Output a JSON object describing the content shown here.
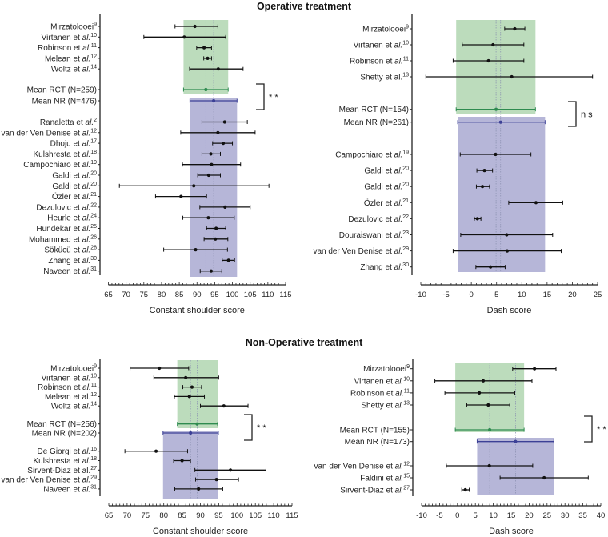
{
  "titles": {
    "operative": "Operative treatment",
    "non_operative": "Non-Operative treatment"
  },
  "colors": {
    "rct_band": "#bcdcbc",
    "nr_band": "#b6b6d8",
    "rct_line": "#2e8b4f",
    "nr_line": "#3c4096",
    "study": "#111111"
  },
  "chart_data": [
    {
      "type": "forest",
      "section": "Operative treatment",
      "xlabel": "Constant shoulder score",
      "xlim": [
        65,
        115
      ],
      "xticks": [
        65,
        70,
        75,
        80,
        85,
        90,
        95,
        100,
        105,
        110,
        115
      ],
      "significance": "* *",
      "rct_studies": [
        {
          "name": "Mirzatolooei",
          "ref": "9",
          "al": false,
          "mean": 89.4,
          "lo": 83.8,
          "hi": 95.9
        },
        {
          "name": "Virtanen et al.",
          "ref": "10",
          "al": true,
          "mean": 86.4,
          "lo": 75.0,
          "hi": 98.1
        },
        {
          "name": "Robinson et al.",
          "ref": "11",
          "al": true,
          "mean": 92.0,
          "lo": 89.9,
          "hi": 94.1
        },
        {
          "name": "Melean et al.",
          "ref": "12",
          "al": true,
          "mean": 93.0,
          "lo": 91.9,
          "hi": 94.1
        },
        {
          "name": "Woltz et al.",
          "ref": "14",
          "al": true,
          "mean": 96.0,
          "lo": 87.9,
          "hi": 103.0
        }
      ],
      "means": [
        {
          "name": "Mean RCT (N=259)",
          "group": "rct",
          "mean": 92.5,
          "lo": 86.2,
          "hi": 98.8
        },
        {
          "name": "Mean NR (N=476)",
          "group": "nr",
          "mean": 94.7,
          "lo": 88.0,
          "hi": 101.3
        }
      ],
      "nr_studies": [
        {
          "name": "Ranaletta et al.",
          "ref": "2",
          "al": true,
          "mean": 97.8,
          "lo": 91.4,
          "hi": 104.2
        },
        {
          "name": "van der Ven Denise et al.",
          "ref": "12",
          "al": true,
          "mean": 95.9,
          "lo": 85.4,
          "hi": 106.4
        },
        {
          "name": "Dhoju et al.",
          "ref": "17",
          "al": true,
          "mean": 97.4,
          "lo": 94.4,
          "hi": 100.0
        },
        {
          "name": "Kulshresta et al.",
          "ref": "18",
          "al": true,
          "mean": 93.9,
          "lo": 91.4,
          "hi": 96.6
        },
        {
          "name": "Campochiaro  et al.",
          "ref": "19",
          "al": true,
          "mean": 94.1,
          "lo": 85.9,
          "hi": 102.3
        },
        {
          "name": "Galdi et al.",
          "ref": "20",
          "al": true,
          "mean": 93.3,
          "lo": 90.2,
          "hi": 96.6
        },
        {
          "name": "Galdi et al.",
          "ref": "20",
          "al": true,
          "mean": 89.1,
          "lo": 68.1,
          "hi": 110.3
        },
        {
          "name": "Özler et al.",
          "ref": "21",
          "al": true,
          "mean": 85.5,
          "lo": 78.3,
          "hi": 92.7
        },
        {
          "name": "Dezulovic et al.",
          "ref": "22",
          "al": true,
          "mean": 97.9,
          "lo": 90.8,
          "hi": 105.0
        },
        {
          "name": "Heurle et al.",
          "ref": "24",
          "al": true,
          "mean": 93.2,
          "lo": 86.0,
          "hi": 100.5
        },
        {
          "name": "Hundekar et al.",
          "ref": "25",
          "al": true,
          "mean": 95.4,
          "lo": 92.7,
          "hi": 98.1
        },
        {
          "name": "Mohammed et al.",
          "ref": "26",
          "al": true,
          "mean": 95.2,
          "lo": 92.0,
          "hi": 98.7
        },
        {
          "name": "Sökücü et al.",
          "ref": "28",
          "al": true,
          "mean": 89.6,
          "lo": 80.6,
          "hi": 98.6
        },
        {
          "name": "Zhang et al.",
          "ref": "30",
          "al": true,
          "mean": 98.9,
          "lo": 97.1,
          "hi": 100.6
        },
        {
          "name": "Naveen et al.",
          "ref": "31",
          "al": true,
          "mean": 94.0,
          "lo": 90.9,
          "hi": 97.0
        }
      ]
    },
    {
      "type": "forest",
      "section": "Operative treatment",
      "xlabel": "Dash score",
      "xlim": [
        -10,
        25
      ],
      "xticks": [
        -10,
        -5,
        0,
        5,
        10,
        15,
        20,
        25
      ],
      "significance": "n s",
      "rct_studies": [
        {
          "name": "Mirzatolooei",
          "ref": "9",
          "al": false,
          "mean": 8.6,
          "lo": 6.6,
          "hi": 10.6
        },
        {
          "name": "Virtanen et al.",
          "ref": "10",
          "al": true,
          "mean": 4.3,
          "lo": -1.8,
          "hi": 10.4
        },
        {
          "name": "Robinson et al.",
          "ref": "11",
          "al": true,
          "mean": 3.4,
          "lo": -3.6,
          "hi": 10.4
        },
        {
          "name": "Shetty et al.",
          "ref": "13",
          "al": false,
          "mean": 8.0,
          "lo": -9.0,
          "hi": 24.0
        }
      ],
      "means": [
        {
          "name": "Mean RCT (N=154)",
          "group": "rct",
          "mean": 4.9,
          "lo": -3.0,
          "hi": 12.7
        },
        {
          "name": "Mean NR (N=261)",
          "group": "nr",
          "mean": 5.8,
          "lo": -2.7,
          "hi": 14.6
        }
      ],
      "nr_studies": [
        {
          "name": "Campochiaro et al.",
          "ref": "19",
          "al": true,
          "mean": 4.8,
          "lo": -2.2,
          "hi": 11.8
        },
        {
          "name": "Galdi et al.",
          "ref": "20",
          "al": true,
          "mean": 2.6,
          "lo": 1.1,
          "hi": 4.2
        },
        {
          "name": "Galdi et al.",
          "ref": "20",
          "al": true,
          "mean": 2.2,
          "lo": 1.0,
          "hi": 3.6
        },
        {
          "name": "Özler et al.",
          "ref": "21",
          "al": true,
          "mean": 12.8,
          "lo": 7.4,
          "hi": 18.1
        },
        {
          "name": "Dezulovic et al.",
          "ref": "22",
          "al": true,
          "mean": 1.2,
          "lo": 0.6,
          "hi": 1.9
        },
        {
          "name": "Douraiswani et al.",
          "ref": "23",
          "al": true,
          "mean": 7.0,
          "lo": -2.1,
          "hi": 16.1
        },
        {
          "name": "van der Ven Denise et al.",
          "ref": "29",
          "al": true,
          "mean": 7.1,
          "lo": -3.6,
          "hi": 17.8
        },
        {
          "name": "Zhang et al.",
          "ref": "30",
          "al": true,
          "mean": 3.8,
          "lo": 0.9,
          "hi": 6.7
        }
      ]
    },
    {
      "type": "forest",
      "section": "Non-Operative treatment",
      "xlabel": "Constant shoulder score",
      "xlim": [
        65,
        115
      ],
      "xticks": [
        65,
        70,
        75,
        80,
        85,
        90,
        95,
        100,
        105,
        110,
        115
      ],
      "significance": "* *",
      "rct_studies": [
        {
          "name": "Mirzatolooei",
          "ref": "9",
          "al": false,
          "mean": 78.8,
          "lo": 70.8,
          "hi": 86.8
        },
        {
          "name": "Virtanen et al.",
          "ref": "10",
          "al": true,
          "mean": 86.0,
          "lo": 77.3,
          "hi": 95.0
        },
        {
          "name": "Robinson et al.",
          "ref": "11",
          "al": true,
          "mean": 87.7,
          "lo": 85.2,
          "hi": 90.3
        },
        {
          "name": "Melean et al.",
          "ref": "12",
          "al": false,
          "mean": 87.0,
          "lo": 82.9,
          "hi": 91.1
        },
        {
          "name": "Woltz et al.",
          "ref": "14",
          "al": true,
          "mean": 96.4,
          "lo": 90.0,
          "hi": 103.0
        }
      ],
      "means": [
        {
          "name": "Mean RCT (N=256)",
          "group": "rct",
          "mean": 89.1,
          "lo": 83.7,
          "hi": 94.7
        },
        {
          "name": "Mean NR (N=202)",
          "group": "nr",
          "mean": 87.3,
          "lo": 79.8,
          "hi": 94.9
        }
      ],
      "nr_studies": [
        {
          "name": "De Giorgi et al.",
          "ref": "16",
          "al": true,
          "mean": 77.9,
          "lo": 69.4,
          "hi": 86.5
        },
        {
          "name": "Kulshresta et al.",
          "ref": "18",
          "al": true,
          "mean": 85.0,
          "lo": 82.7,
          "hi": 87.3
        },
        {
          "name": "Sirvent-Diaz et al.",
          "ref": "27",
          "al": false,
          "mean": 98.2,
          "lo": 88.5,
          "hi": 107.9
        },
        {
          "name": "van der Ven Denise et al.",
          "ref": "29",
          "al": true,
          "mean": 94.4,
          "lo": 88.7,
          "hi": 100.4
        },
        {
          "name": "Naveen et al.",
          "ref": "31",
          "al": true,
          "mean": 89.5,
          "lo": 83.0,
          "hi": 96.1
        }
      ]
    },
    {
      "type": "forest",
      "section": "Non-Operative treatment",
      "xlabel": "Dash score",
      "xlim": [
        -10,
        40
      ],
      "xticks": [
        -10,
        -5,
        0,
        5,
        10,
        15,
        20,
        25,
        30,
        35,
        40
      ],
      "significance": "* *",
      "rct_studies": [
        {
          "name": "Mirzatolooei",
          "ref": "9",
          "al": false,
          "mean": 21.5,
          "lo": 15.4,
          "hi": 27.5
        },
        {
          "name": "Virtanen et al.",
          "ref": "10",
          "al": true,
          "mean": 7.2,
          "lo": -6.3,
          "hi": 20.8
        },
        {
          "name": "Robinson et al.",
          "ref": "11",
          "al": true,
          "mean": 6.1,
          "lo": -3.5,
          "hi": 16.0
        },
        {
          "name": "Shetty et al.",
          "ref": "13",
          "al": true,
          "mean": 8.6,
          "lo": 2.6,
          "hi": 14.6
        }
      ],
      "means": [
        {
          "name": "Mean RCT (N=155)",
          "group": "rct",
          "mean": 9.0,
          "lo": -0.6,
          "hi": 18.6
        },
        {
          "name": "Mean NR (N=173)",
          "group": "nr",
          "mean": 16.2,
          "lo": 5.5,
          "hi": 26.9
        }
      ],
      "nr_studies": [
        {
          "name": "van der Ven Denise et al.",
          "ref": "12",
          "al": true,
          "mean": 8.9,
          "lo": -3.1,
          "hi": 21.0
        },
        {
          "name": "Faldini et al.",
          "ref": "15",
          "al": true,
          "mean": 24.2,
          "lo": 11.9,
          "hi": 36.5
        },
        {
          "name": "Sirvent-Diaz et al.",
          "ref": "27",
          "al": true,
          "mean": 2.2,
          "lo": 1.2,
          "hi": 3.3
        }
      ]
    }
  ]
}
